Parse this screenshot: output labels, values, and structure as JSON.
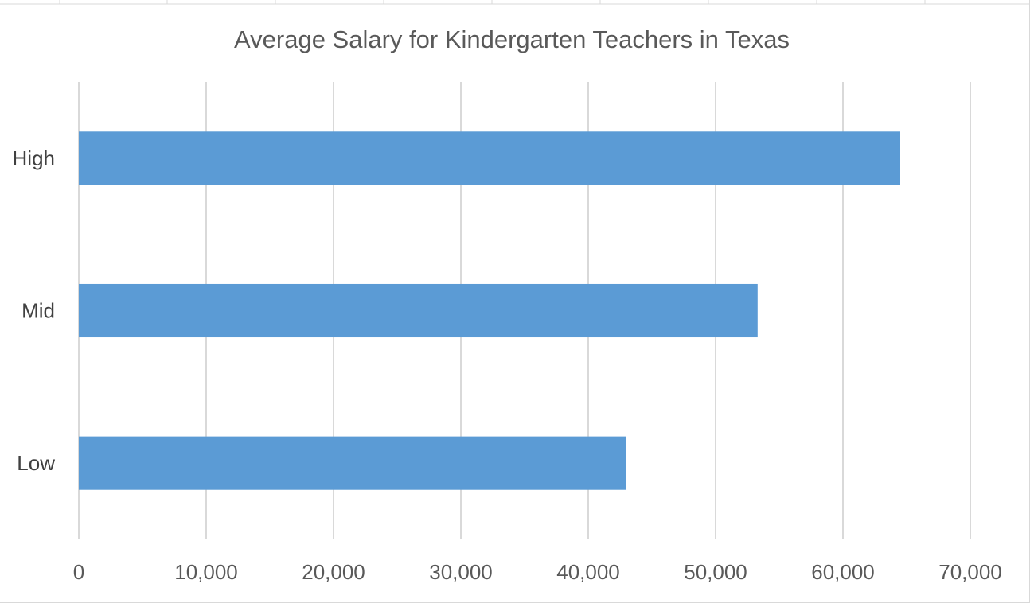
{
  "chart_data": {
    "type": "bar",
    "orientation": "horizontal",
    "title": "Average Salary for Kindergarten Teachers in Texas",
    "categories": [
      "High",
      "Mid",
      "Low"
    ],
    "values": [
      64500,
      53300,
      43000
    ],
    "xlim": [
      0,
      70000
    ],
    "x_ticks": [
      0,
      10000,
      20000,
      30000,
      40000,
      50000,
      60000,
      70000
    ],
    "x_tick_labels": [
      "0",
      "10,000",
      "20,000",
      "30,000",
      "40,000",
      "50,000",
      "60,000",
      "70,000"
    ],
    "xlabel": "",
    "ylabel": "",
    "grid": "vertical",
    "legend": "none",
    "bar_color": "#5b9bd5"
  }
}
